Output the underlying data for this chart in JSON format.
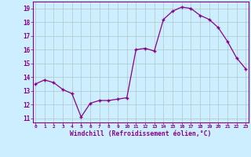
{
  "x": [
    0,
    1,
    2,
    3,
    4,
    5,
    6,
    7,
    8,
    9,
    10,
    11,
    12,
    13,
    14,
    15,
    16,
    17,
    18,
    19,
    20,
    21,
    22,
    23
  ],
  "y": [
    13.5,
    13.8,
    13.6,
    13.1,
    12.8,
    11.1,
    12.1,
    12.3,
    12.3,
    12.4,
    12.5,
    16.0,
    16.1,
    15.9,
    18.2,
    18.8,
    19.1,
    19.0,
    18.5,
    18.2,
    17.6,
    16.6,
    15.4,
    14.6
  ],
  "line_color": "#880088",
  "marker": "+",
  "marker_color": "#880088",
  "bg_color": "#cceeff",
  "grid_color": "#b0c8c8",
  "xlabel": "Windchill (Refroidissement éolien,°C)",
  "xlabel_color": "#880088",
  "tick_color": "#880088",
  "ylim": [
    10.7,
    19.5
  ],
  "yticks": [
    11,
    12,
    13,
    14,
    15,
    16,
    17,
    18,
    19
  ],
  "xticks": [
    0,
    1,
    2,
    3,
    4,
    5,
    6,
    7,
    8,
    9,
    10,
    11,
    12,
    13,
    14,
    15,
    16,
    17,
    18,
    19,
    20,
    21,
    22,
    23
  ],
  "spine_color": "#880088",
  "xlim": [
    -0.3,
    23.3
  ]
}
